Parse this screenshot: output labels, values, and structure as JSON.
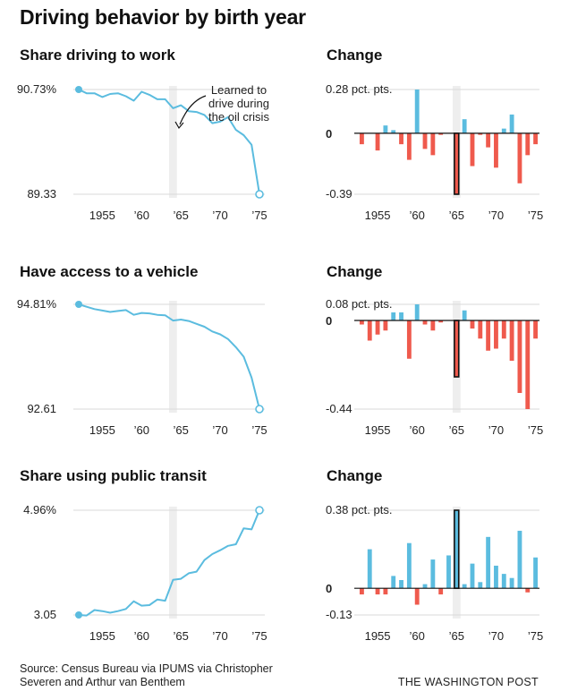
{
  "title": "Driving behavior by birth year",
  "source": "Source: Census Bureau via IPUMS via Christopher Severen and Arthur van Benthem",
  "credit": "THE WASHINGTON POST",
  "colors": {
    "line": "#5bbcdf",
    "positive": "#5bbcdf",
    "negative": "#ef5a4d",
    "shade": "#eeeeee",
    "grid": "#d9d9d9",
    "text": "#222222"
  },
  "chart_data": [
    {
      "type": "line",
      "title": "Share driving to work",
      "x": [
        1952,
        1953,
        1954,
        1955,
        1956,
        1957,
        1958,
        1959,
        1960,
        1961,
        1962,
        1963,
        1964,
        1965,
        1966,
        1967,
        1968,
        1969,
        1970,
        1971,
        1972,
        1973,
        1974,
        1975
      ],
      "values": [
        90.73,
        90.68,
        90.68,
        90.63,
        90.67,
        90.68,
        90.64,
        90.58,
        90.7,
        90.66,
        90.6,
        90.6,
        90.48,
        90.52,
        90.44,
        90.43,
        90.39,
        90.28,
        90.3,
        90.36,
        90.19,
        90.12,
        89.99,
        89.33
      ],
      "ylim": [
        89.33,
        90.73
      ],
      "ytick_labels": [
        "90.73%",
        "89.33"
      ],
      "xtick_labels": [
        "1955",
        "’60",
        "’65",
        "’70",
        "’75"
      ],
      "xticks": [
        1955,
        1960,
        1965,
        1970,
        1975
      ],
      "shade": [
        1963.5,
        1964.5
      ],
      "annotation": {
        "lines": [
          "Learned to",
          "drive during",
          "the oil crisis"
        ]
      }
    },
    {
      "type": "bar",
      "title": "Change",
      "x": [
        1953,
        1954,
        1955,
        1956,
        1957,
        1958,
        1959,
        1960,
        1961,
        1962,
        1963,
        1964,
        1965,
        1966,
        1967,
        1968,
        1969,
        1970,
        1971,
        1972,
        1973,
        1974,
        1975
      ],
      "values": [
        -0.07,
        0,
        -0.11,
        0.05,
        0.02,
        -0.07,
        -0.17,
        0.28,
        -0.1,
        -0.14,
        -0.01,
        0,
        -0.39,
        0.09,
        -0.21,
        -0.01,
        -0.09,
        -0.22,
        0.03,
        0.12,
        -0.32,
        -0.14,
        -0.07
      ],
      "ylim": [
        -0.39,
        0.28
      ],
      "ytick_labels": [
        "0.28 pct. pts.",
        "0",
        "-0.39"
      ],
      "xtick_labels": [
        "1955",
        "’60",
        "’65",
        "’70",
        "’75"
      ],
      "xticks": [
        1955,
        1960,
        1965,
        1970,
        1975
      ],
      "shade": [
        1964.5,
        1965.5
      ],
      "highlight": 1965
    },
    {
      "type": "line",
      "title": "Have access to a vehicle",
      "x": [
        1952,
        1953,
        1954,
        1955,
        1956,
        1957,
        1958,
        1959,
        1960,
        1961,
        1962,
        1963,
        1964,
        1965,
        1966,
        1967,
        1968,
        1969,
        1970,
        1971,
        1972,
        1973,
        1974,
        1975
      ],
      "values": [
        94.81,
        94.76,
        94.71,
        94.68,
        94.65,
        94.67,
        94.69,
        94.59,
        94.63,
        94.62,
        94.59,
        94.58,
        94.47,
        94.49,
        94.46,
        94.4,
        94.34,
        94.24,
        94.18,
        94.08,
        93.91,
        93.71,
        93.27,
        92.61
      ],
      "ylim": [
        92.61,
        94.81
      ],
      "ytick_labels": [
        "94.81%",
        "92.61"
      ],
      "xtick_labels": [
        "1955",
        "’60",
        "’65",
        "’70",
        "’75"
      ],
      "xticks": [
        1955,
        1960,
        1965,
        1970,
        1975
      ],
      "shade": [
        1963.5,
        1964.5
      ]
    },
    {
      "type": "bar",
      "title": "Change",
      "x": [
        1953,
        1954,
        1955,
        1956,
        1957,
        1958,
        1959,
        1960,
        1961,
        1962,
        1963,
        1964,
        1965,
        1966,
        1967,
        1968,
        1969,
        1970,
        1971,
        1972,
        1973,
        1974,
        1975
      ],
      "values": [
        -0.02,
        -0.1,
        -0.07,
        -0.05,
        0.04,
        0.04,
        -0.19,
        0.08,
        -0.02,
        -0.05,
        -0.01,
        0,
        -0.28,
        0.05,
        -0.04,
        -0.09,
        -0.15,
        -0.14,
        -0.09,
        -0.2,
        -0.36,
        -0.44,
        -0.09
      ],
      "ylim": [
        -0.44,
        0.08
      ],
      "ytick_labels": [
        "0.08 pct. pts.",
        "0",
        "-0.44"
      ],
      "xtick_labels": [
        "1955",
        "’60",
        "’65",
        "’70",
        "’75"
      ],
      "xticks": [
        1955,
        1960,
        1965,
        1970,
        1975
      ],
      "shade": [
        1964.5,
        1965.5
      ],
      "highlight": 1965
    },
    {
      "type": "line",
      "title": "Share using public transit",
      "x": [
        1952,
        1953,
        1954,
        1955,
        1956,
        1957,
        1958,
        1959,
        1960,
        1961,
        1962,
        1963,
        1964,
        1965,
        1966,
        1967,
        1968,
        1969,
        1970,
        1971,
        1972,
        1973,
        1974,
        1975
      ],
      "values": [
        3.05,
        3.04,
        3.14,
        3.12,
        3.09,
        3.12,
        3.16,
        3.3,
        3.22,
        3.23,
        3.33,
        3.31,
        3.69,
        3.71,
        3.81,
        3.84,
        4.05,
        4.16,
        4.23,
        4.31,
        4.34,
        4.63,
        4.61,
        4.96
      ],
      "ylim": [
        3.05,
        4.96
      ],
      "ytick_labels": [
        "4.96%",
        "3.05"
      ],
      "xtick_labels": [
        "1955",
        "’60",
        "’65",
        "’70",
        "’75"
      ],
      "xticks": [
        1955,
        1960,
        1965,
        1970,
        1975
      ],
      "shade": [
        1963.5,
        1964.5
      ]
    },
    {
      "type": "bar",
      "title": "Change",
      "x": [
        1953,
        1954,
        1955,
        1956,
        1957,
        1958,
        1959,
        1960,
        1961,
        1962,
        1963,
        1964,
        1965,
        1966,
        1967,
        1968,
        1969,
        1970,
        1971,
        1972,
        1973,
        1974,
        1975
      ],
      "values": [
        -0.03,
        0.19,
        -0.03,
        -0.03,
        0.06,
        0.04,
        0.22,
        -0.08,
        0.02,
        0.14,
        -0.03,
        0.16,
        0.38,
        0.02,
        0.12,
        0.03,
        0.25,
        0.11,
        0.07,
        0.05,
        0.28,
        -0.02,
        0.15
      ],
      "ylim": [
        -0.13,
        0.38
      ],
      "ytick_labels": [
        "0.38 pct. pts.",
        "0",
        "-0.13"
      ],
      "xtick_labels": [
        "1955",
        "’60",
        "’65",
        "’70",
        "’75"
      ],
      "xticks": [
        1955,
        1960,
        1965,
        1970,
        1975
      ],
      "shade": [
        1964.5,
        1965.5
      ],
      "highlight": 1965
    }
  ]
}
